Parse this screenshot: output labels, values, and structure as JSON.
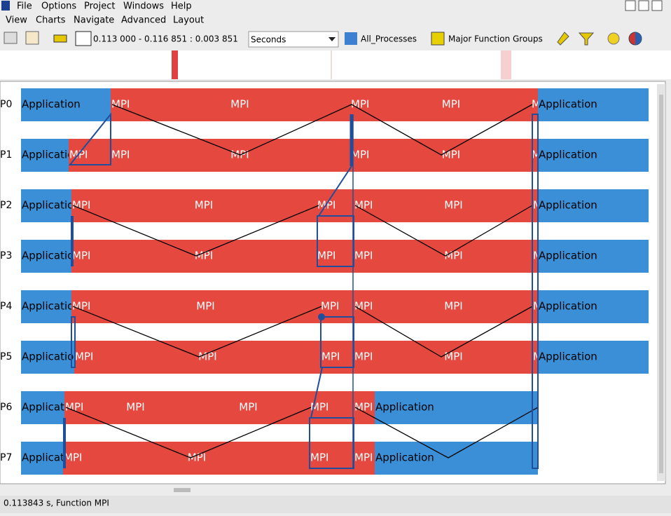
{
  "menu": {
    "row1": [
      "File",
      "Options",
      "Project",
      "Windows",
      "Help"
    ],
    "row2": [
      "View",
      "Charts",
      "Navigate",
      "Advanced",
      "Layout"
    ]
  },
  "toolbar": {
    "time_range": "0.113 000 - 0.116 851 : 0.003 851",
    "unit": "Seconds",
    "processes": "All_Processes",
    "grouping": "Major Function Groups"
  },
  "timeline": {
    "rows": [
      {
        "label": "P0",
        "segments": [
          "Application",
          "MPI",
          "MPI",
          "MPI",
          "MPI",
          "MPI",
          "Application"
        ]
      },
      {
        "label": "P1",
        "segments": [
          "Application",
          "MPI",
          "MPI",
          "MPI",
          "MPI",
          "MPI",
          "MPI",
          "Application"
        ]
      },
      {
        "label": "P2",
        "segments": [
          "Application",
          "MPI",
          "MPI",
          "MPI",
          "MPI",
          "MPI",
          "MPI",
          "Application"
        ]
      },
      {
        "label": "P3",
        "segments": [
          "Application",
          "MPI",
          "MPI",
          "MPI",
          "MPI",
          "MPI",
          "MPI",
          "Application"
        ]
      },
      {
        "label": "P4",
        "segments": [
          "Application",
          "MPI",
          "MPI",
          "MPI",
          "MPI",
          "MPI",
          "MPI",
          "Application"
        ]
      },
      {
        "label": "P5",
        "segments": [
          "Application",
          "MPI",
          "MPI",
          "MPI",
          "MPI",
          "MPI",
          "MPI",
          "Application"
        ]
      },
      {
        "label": "P6",
        "segments": [
          "Application",
          "MPI",
          "MPI",
          "MPI",
          "MPI",
          "MPI",
          "Application"
        ]
      },
      {
        "label": "P7",
        "segments": [
          "Application",
          "MPI",
          "MPI",
          "MPI",
          "MPI",
          "Application"
        ]
      }
    ]
  },
  "status": "0.113843 s, Function MPI"
}
